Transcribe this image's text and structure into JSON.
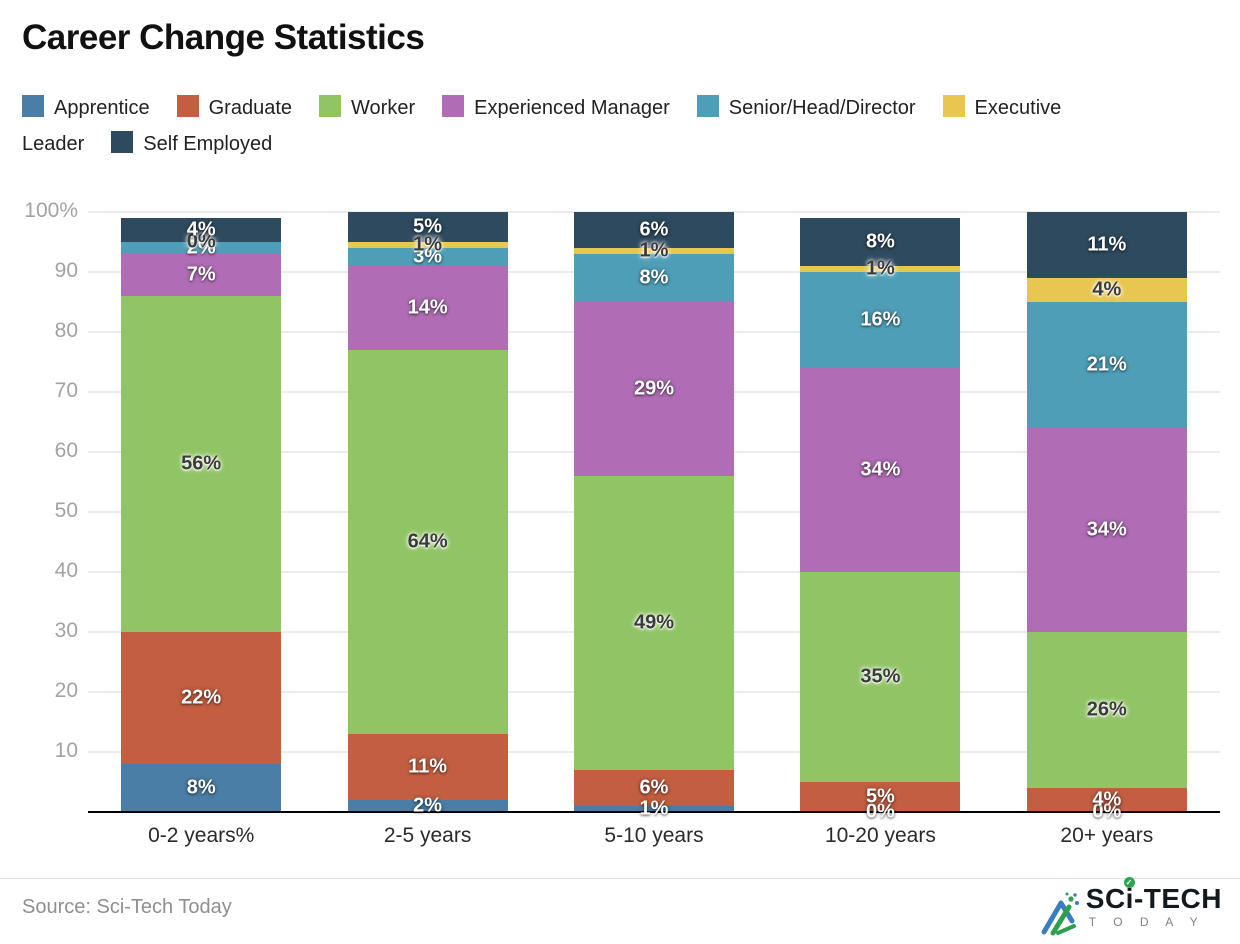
{
  "chart_data": {
    "type": "bar",
    "subtype": "stacked_percentage_column",
    "title": "Career Change Statistics",
    "categories": [
      "0-2 years%",
      "2-5 years",
      "5-10 years",
      "10-20 years",
      "20+ years"
    ],
    "series": [
      {
        "name": "Apprentice",
        "color": "#4a7ea6",
        "label_color": "#ffffff",
        "values": [
          8,
          2,
          1,
          0,
          0
        ]
      },
      {
        "name": "Graduate",
        "color": "#c45e41",
        "label_color": "#ffffff",
        "values": [
          22,
          11,
          6,
          5,
          4
        ]
      },
      {
        "name": "Worker",
        "color": "#90c464",
        "label_color": "#3b3b3b",
        "values": [
          56,
          64,
          49,
          35,
          26
        ]
      },
      {
        "name": "Experienced Manager",
        "color": "#b06db5",
        "label_color": "#ffffff",
        "values": [
          7,
          14,
          29,
          34,
          34
        ]
      },
      {
        "name": "Senior/Head/Director",
        "color": "#4f9eb8",
        "label_color": "#ffffff",
        "values": [
          2,
          3,
          8,
          16,
          21
        ]
      },
      {
        "name": "Executive Leader",
        "color": "#e9c64f",
        "label_color": "#3b3b3b",
        "values": [
          0,
          1,
          1,
          1,
          4
        ]
      },
      {
        "name": "Self Employed",
        "color": "#2e4a5e",
        "label_color": "#ffffff",
        "values": [
          4,
          5,
          6,
          8,
          11
        ]
      }
    ],
    "value_suffix": "%",
    "ylim": [
      0,
      100
    ],
    "yticks": [
      "100%",
      "90",
      "80",
      "70",
      "60",
      "50",
      "40",
      "30",
      "20",
      "10"
    ],
    "grid": true,
    "legend_position": "top"
  },
  "footer": {
    "source": "Source: Sci-Tech Today",
    "logo": {
      "before_i": "SC",
      "i_char": "i",
      "after_i": "-TECH",
      "check": "✓",
      "tagline": "T O D A Y"
    }
  }
}
